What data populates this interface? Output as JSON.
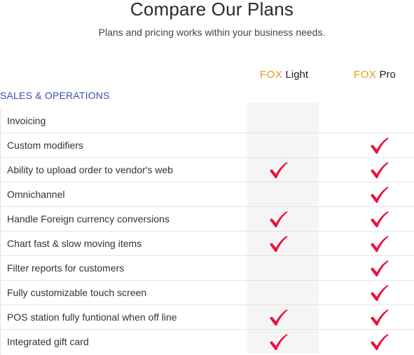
{
  "header": {
    "title": "Compare Our Plans",
    "subtitle": "Plans and pricing works within your business needs."
  },
  "plans": {
    "light": {
      "brand": "FOX",
      "name": "Light"
    },
    "pro": {
      "brand": "FOX",
      "name": "Pro"
    }
  },
  "section": {
    "title": "SALES & OPERATIONS"
  },
  "colors": {
    "brand_orange": "#e39b1b",
    "section_blue": "#3b4fb0",
    "check_red": "#e8133f"
  },
  "features": [
    {
      "name": "Invoicing",
      "light": false,
      "pro": false
    },
    {
      "name": "Custom modifiers",
      "light": false,
      "pro": true
    },
    {
      "name": "Ability to upload order to vendor's web",
      "light": true,
      "pro": true
    },
    {
      "name": "Omnichannel",
      "light": false,
      "pro": true
    },
    {
      "name": "Handle Foreign currency conversions",
      "light": true,
      "pro": true
    },
    {
      "name": "Chart fast & slow moving items",
      "light": true,
      "pro": true
    },
    {
      "name": "Filter reports for customers",
      "light": false,
      "pro": true
    },
    {
      "name": "Fully customizable touch screen",
      "light": false,
      "pro": true
    },
    {
      "name": "POS station fully funtional when off line",
      "light": true,
      "pro": true
    },
    {
      "name": "Integrated gift card",
      "light": true,
      "pro": true
    }
  ]
}
